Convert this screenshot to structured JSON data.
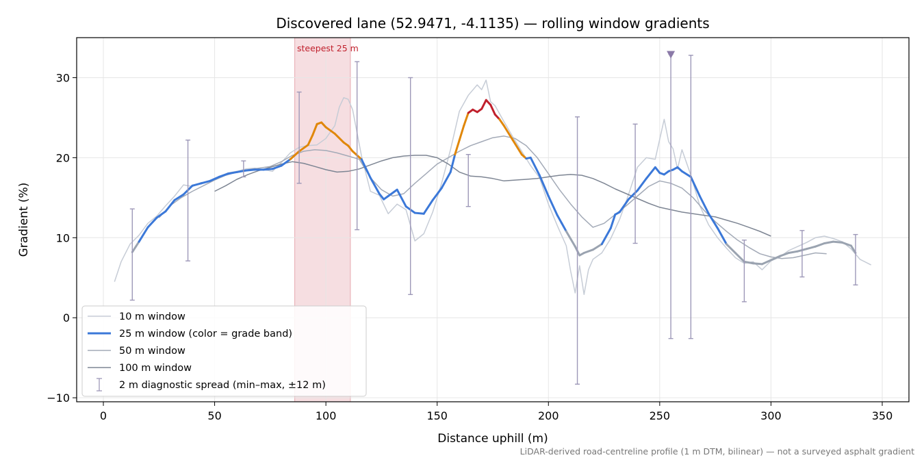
{
  "chart_data": {
    "type": "line",
    "title": "Discovered lane (52.9471, -4.1135) — rolling window gradients",
    "xlabel": "Distance uphill (m)",
    "ylabel": "Gradient (%)",
    "xlim": [
      -12,
      362
    ],
    "ylim": [
      -10.5,
      35
    ],
    "x_ticks": [
      0,
      50,
      100,
      150,
      200,
      250,
      300,
      350
    ],
    "y_ticks": [
      -10,
      0,
      10,
      20,
      30
    ],
    "x_tick_labels": [
      "0",
      "50",
      "100",
      "150",
      "200",
      "250",
      "300",
      "350"
    ],
    "y_tick_labels": [
      "−10",
      "0",
      "10",
      "20",
      "30"
    ],
    "grid": true,
    "legend_position": "lower-left",
    "footnote": "LiDAR-derived road-centreline profile (1 m DTM, bilinear) — not a surveyed asphalt gradient",
    "highlight": {
      "x_start": 86,
      "x_end": 111,
      "label": "steepest 25 m"
    },
    "marker": {
      "x": 255,
      "y": 32.9
    },
    "legend": [
      "10 m window",
      "25 m window (color = grade band)",
      "50 m window",
      "100 m window",
      "2 m diagnostic spread (min–max, ±12 m)"
    ],
    "colors": {
      "w10": "#c6ccd6",
      "w25_base": "#3b78d8",
      "w25_mid": "#e0870a",
      "w25_high": "#c0202c",
      "w25_low": "#9aa3b0",
      "w50": "#a3aab7",
      "w100": "#7d8593",
      "errorbar": "#9d98b8",
      "highlight": "#f2d0d4",
      "marker": "#8b7aa8"
    },
    "series": [
      {
        "name": "10 m window",
        "x": [
          5,
          8,
          12,
          16,
          20,
          24,
          28,
          32,
          36,
          40,
          44,
          48,
          52,
          56,
          60,
          64,
          68,
          72,
          76,
          80,
          84,
          88,
          92,
          96,
          100,
          104,
          106,
          108,
          110,
          112,
          116,
          120,
          124,
          128,
          132,
          136,
          140,
          144,
          148,
          152,
          156,
          160,
          164,
          168,
          170,
          172,
          174,
          176,
          180,
          184,
          188,
          192,
          196,
          200,
          204,
          208,
          210,
          212,
          214,
          216,
          218,
          220,
          224,
          228,
          232,
          236,
          240,
          244,
          248,
          252,
          254,
          256,
          258,
          260,
          264,
          268,
          272,
          276,
          280,
          284,
          288,
          292,
          296,
          300,
          304,
          308,
          312,
          316,
          320,
          324,
          328,
          332,
          336,
          340,
          345
        ],
        "y": [
          4.5,
          7.0,
          9.2,
          10.3,
          11.8,
          12.7,
          14.0,
          15.2,
          16.6,
          16.4,
          16.9,
          17.0,
          17.6,
          18.1,
          18.3,
          18.6,
          18.7,
          18.5,
          18.3,
          19.4,
          20.6,
          21.3,
          21.5,
          21.6,
          22.4,
          24.0,
          26.3,
          27.5,
          27.3,
          26.0,
          20.2,
          15.8,
          15.3,
          13.0,
          14.2,
          13.5,
          9.6,
          10.5,
          13.2,
          16.8,
          21.0,
          25.8,
          27.8,
          29.1,
          28.5,
          29.7,
          27.0,
          26.5,
          24.5,
          22.6,
          20.8,
          19.0,
          17.5,
          14.2,
          11.5,
          9.0,
          5.8,
          3.1,
          6.5,
          2.9,
          6.0,
          7.3,
          8.1,
          9.9,
          12.3,
          15.4,
          18.8,
          20.0,
          19.8,
          24.8,
          22.0,
          21.1,
          18.6,
          21.0,
          17.8,
          14.0,
          11.6,
          10.0,
          8.7,
          7.5,
          6.8,
          7.0,
          6.0,
          7.1,
          7.6,
          8.4,
          8.9,
          9.4,
          10.0,
          10.2,
          9.9,
          9.5,
          8.6,
          7.3,
          6.6
        ]
      },
      {
        "name": "25 m window (color = grade band)",
        "x": [
          13,
          16,
          20,
          24,
          28,
          32,
          36,
          40,
          44,
          48,
          52,
          56,
          60,
          64,
          68,
          72,
          76,
          80,
          84,
          88,
          92,
          94,
          96,
          98,
          100,
          104,
          108,
          110,
          112,
          116,
          120,
          124,
          126,
          128,
          132,
          136,
          140,
          144,
          148,
          152,
          156,
          158,
          160,
          162,
          164,
          166,
          168,
          170,
          172,
          174,
          176,
          178,
          180,
          184,
          188,
          190,
          192,
          196,
          200,
          204,
          206,
          208,
          212,
          214,
          216,
          220,
          224,
          228,
          230,
          232,
          236,
          240,
          244,
          248,
          250,
          252,
          254,
          256,
          258,
          260,
          264,
          268,
          272,
          276,
          280,
          284,
          288,
          292,
          296,
          300,
          304,
          308,
          312,
          316,
          320,
          324,
          328,
          332,
          336,
          338
        ],
        "y": [
          8.2,
          9.5,
          11.3,
          12.5,
          13.3,
          14.7,
          15.4,
          16.5,
          16.8,
          17.1,
          17.6,
          18.0,
          18.2,
          18.4,
          18.5,
          18.5,
          18.6,
          19.0,
          19.8,
          20.8,
          21.6,
          22.8,
          24.2,
          24.4,
          23.8,
          23.0,
          21.9,
          21.5,
          20.8,
          19.8,
          17.5,
          15.5,
          14.8,
          15.2,
          16.0,
          13.9,
          13.1,
          13.0,
          14.7,
          16.2,
          18.2,
          20.4,
          22.2,
          24.0,
          25.6,
          26.0,
          25.7,
          26.1,
          27.2,
          26.6,
          25.4,
          24.8,
          24.0,
          22.2,
          20.4,
          19.9,
          20.0,
          17.8,
          15.2,
          12.8,
          11.8,
          10.8,
          8.9,
          7.8,
          8.1,
          8.5,
          9.2,
          11.2,
          12.9,
          13.2,
          14.8,
          15.9,
          17.4,
          18.8,
          18.1,
          17.9,
          18.3,
          18.5,
          18.8,
          18.3,
          17.6,
          15.2,
          13.0,
          11.2,
          9.2,
          8.1,
          7.0,
          6.8,
          6.7,
          7.2,
          7.7,
          8.1,
          8.3,
          8.6,
          8.9,
          9.3,
          9.5,
          9.4,
          9.0,
          8.1
        ]
      },
      {
        "name": "50 m window",
        "x": [
          25,
          30,
          35,
          40,
          45,
          50,
          55,
          60,
          65,
          70,
          75,
          80,
          85,
          90,
          95,
          100,
          105,
          110,
          115,
          120,
          125,
          130,
          135,
          140,
          145,
          150,
          155,
          160,
          165,
          170,
          175,
          180,
          185,
          190,
          195,
          200,
          205,
          210,
          215,
          220,
          225,
          230,
          235,
          240,
          245,
          250,
          255,
          260,
          265,
          270,
          275,
          280,
          285,
          290,
          295,
          300,
          305,
          310,
          315,
          320,
          325
        ],
        "y": [
          12.5,
          14.0,
          15.0,
          15.8,
          16.5,
          17.2,
          17.8,
          18.2,
          18.5,
          18.7,
          18.9,
          19.5,
          20.3,
          20.8,
          21.0,
          20.9,
          20.6,
          20.2,
          19.8,
          17.5,
          16.0,
          15.2,
          15.5,
          16.8,
          18.0,
          19.2,
          20.0,
          20.8,
          21.5,
          22.0,
          22.5,
          22.7,
          22.4,
          21.5,
          20.0,
          18.0,
          16.0,
          14.2,
          12.6,
          11.3,
          11.8,
          12.9,
          14.0,
          15.2,
          16.4,
          17.1,
          16.8,
          16.2,
          15.0,
          13.4,
          12.0,
          10.8,
          9.7,
          8.8,
          8.0,
          7.6,
          7.4,
          7.5,
          7.8,
          8.1,
          8.0
        ]
      },
      {
        "name": "100 m window",
        "x": [
          50,
          55,
          60,
          65,
          70,
          75,
          80,
          85,
          90,
          95,
          100,
          105,
          110,
          115,
          120,
          125,
          130,
          135,
          140,
          145,
          150,
          155,
          160,
          165,
          170,
          175,
          180,
          185,
          190,
          195,
          200,
          205,
          210,
          215,
          220,
          225,
          230,
          235,
          240,
          245,
          250,
          255,
          260,
          265,
          270,
          275,
          280,
          285,
          290,
          295,
          300
        ],
        "y": [
          15.8,
          16.5,
          17.3,
          17.9,
          18.4,
          18.8,
          19.2,
          19.5,
          19.3,
          18.9,
          18.5,
          18.2,
          18.3,
          18.6,
          19.1,
          19.6,
          20.0,
          20.2,
          20.3,
          20.3,
          20.0,
          19.2,
          18.2,
          17.7,
          17.6,
          17.4,
          17.1,
          17.2,
          17.3,
          17.4,
          17.6,
          17.8,
          17.9,
          17.8,
          17.4,
          16.8,
          16.1,
          15.5,
          14.9,
          14.3,
          13.8,
          13.5,
          13.2,
          13.0,
          12.8,
          12.6,
          12.2,
          11.8,
          11.3,
          10.8,
          10.2
        ]
      }
    ],
    "error_bars": {
      "name": "2 m diagnostic spread (min–max, ±12 m)",
      "x": [
        13,
        38,
        63,
        88,
        114,
        138,
        164,
        213,
        239,
        255,
        264,
        288,
        314,
        338
      ],
      "min": [
        2.2,
        7.1,
        17.6,
        16.8,
        11.0,
        2.9,
        13.9,
        -8.3,
        9.3,
        -2.6,
        -2.6,
        2.0,
        5.1,
        4.1
      ],
      "max": [
        13.6,
        22.2,
        19.6,
        28.2,
        32.0,
        30.0,
        20.4,
        25.1,
        24.2,
        32.9,
        32.8,
        9.7,
        10.9,
        10.4
      ]
    }
  }
}
